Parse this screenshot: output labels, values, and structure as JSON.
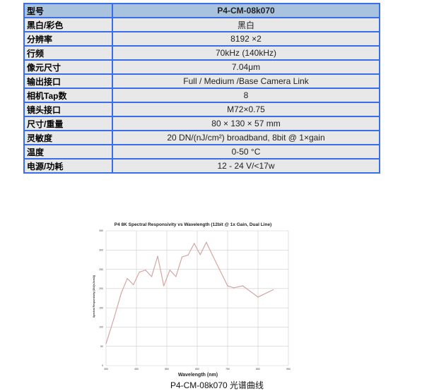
{
  "specs": {
    "rows": [
      {
        "label": "型号",
        "value": "P4-CM-08k070"
      },
      {
        "label": "黑白/彩色",
        "value": "黑白"
      },
      {
        "label": "分辨率",
        "value": "8192 ×2"
      },
      {
        "label": "行频",
        "value": "70kHz (140kHz)"
      },
      {
        "label": "像元尺寸",
        "value": "7.04μm"
      },
      {
        "label": "输出接口",
        "value": "Full / Medium /Base Camera Link"
      },
      {
        "label": "相机Tap数",
        "value": "8"
      },
      {
        "label": "镜头接口",
        "value": "M72×0.75"
      },
      {
        "label": "尺寸/重量",
        "value": "80 × 130 × 57 mm"
      },
      {
        "label": "灵敏度",
        "value": "20 DN/(nJ/cm²) broadband, 8bit @ 1×gain"
      },
      {
        "label": "温度",
        "value": "0-50 °C"
      },
      {
        "label": "电源/功耗",
        "value": "12 - 24 V/<17w"
      }
    ]
  },
  "caption": "P4-CM-08k070 光谱曲线",
  "chart_data": {
    "type": "line",
    "title": "P4 8K Spectral Responsivity vs Wavelength (12bit @ 1x Gain, Dual Line)",
    "xlabel": "Wavelength (nm)",
    "ylabel": "Spectral Responsivity (DN/(nJ/cm2))",
    "xlim": [
      350,
      950
    ],
    "ylim": [
      0,
      350
    ],
    "xticks": [
      350,
      450,
      550,
      650,
      750,
      850,
      950
    ],
    "yticks": [
      0,
      50,
      100,
      150,
      200,
      250,
      300,
      350
    ],
    "grid": true,
    "color": "#d4a5a5",
    "x": [
      350,
      375,
      400,
      420,
      440,
      460,
      480,
      500,
      520,
      540,
      560,
      580,
      600,
      620,
      640,
      660,
      680,
      700,
      750,
      770,
      800,
      850,
      900
    ],
    "y": [
      57,
      120,
      188,
      226,
      210,
      243,
      248,
      231,
      284,
      207,
      248,
      231,
      282,
      287,
      317,
      288,
      320,
      287,
      207,
      202,
      207,
      178,
      197
    ]
  }
}
